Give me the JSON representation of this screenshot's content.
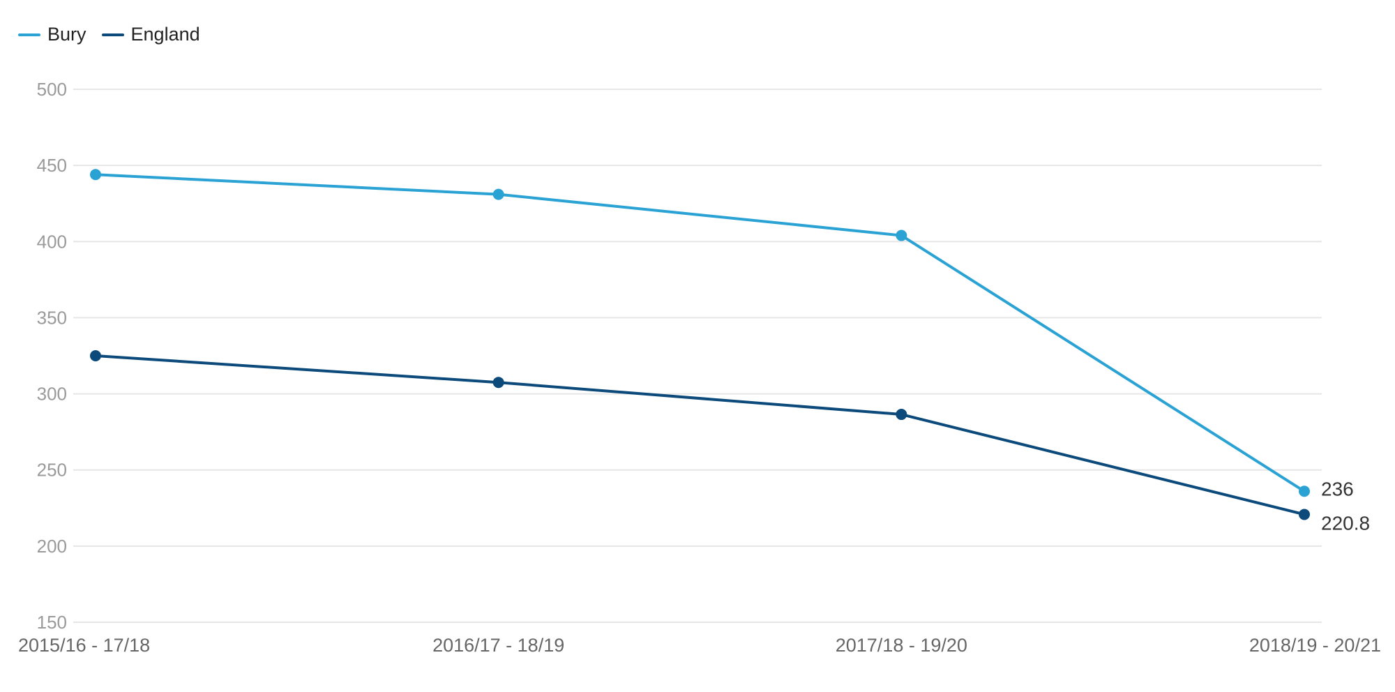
{
  "chart_data": {
    "type": "line",
    "title": "",
    "xlabel": "",
    "ylabel": "",
    "categories": [
      "2015/16 - 17/18",
      "2016/17 - 18/19",
      "2017/18 - 19/20",
      "2018/19 - 20/21"
    ],
    "series": [
      {
        "name": "Bury",
        "color": "#2aa3d4",
        "values": [
          444,
          431,
          404,
          236
        ]
      },
      {
        "name": "England",
        "color": "#0b4a7a",
        "values": [
          325,
          307.5,
          286.5,
          220.8
        ]
      }
    ],
    "ylim": [
      150,
      500
    ],
    "yticks": [
      150,
      200,
      250,
      300,
      350,
      400,
      450,
      500
    ],
    "grid": true,
    "legend": "top-left",
    "last_point_labels": [
      "236",
      "220.8"
    ]
  }
}
